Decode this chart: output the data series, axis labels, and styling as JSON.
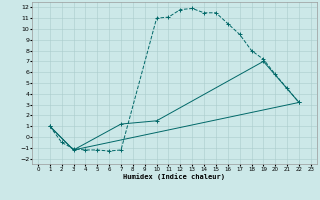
{
  "title": "",
  "xlabel": "Humidex (Indice chaleur)",
  "xlim": [
    -0.5,
    23.5
  ],
  "ylim": [
    -2.5,
    12.5
  ],
  "xticks": [
    0,
    1,
    2,
    3,
    4,
    5,
    6,
    7,
    8,
    9,
    10,
    11,
    12,
    13,
    14,
    15,
    16,
    17,
    18,
    19,
    20,
    21,
    22,
    23
  ],
  "yticks": [
    -2,
    -1,
    0,
    1,
    2,
    3,
    4,
    5,
    6,
    7,
    8,
    9,
    10,
    11,
    12
  ],
  "background_color": "#cce8e8",
  "grid_color": "#aacccc",
  "line_color": "#006868",
  "series": [
    {
      "x": [
        1,
        2,
        3,
        4,
        5,
        6,
        7,
        10,
        11,
        12,
        13,
        14,
        15,
        16,
        17,
        18,
        19,
        20,
        21,
        22
      ],
      "y": [
        1,
        -0.5,
        -1.1,
        -1.2,
        -1.2,
        -1.3,
        -1.2,
        11.0,
        11.1,
        11.8,
        11.9,
        11.5,
        11.5,
        10.5,
        9.5,
        8.0,
        7.2,
        5.8,
        4.5,
        3.2
      ],
      "marker": "+"
    },
    {
      "x": [
        1,
        3,
        7,
        10,
        19,
        22
      ],
      "y": [
        1,
        -1.2,
        1.2,
        1.5,
        7.0,
        3.2
      ]
    },
    {
      "x": [
        1,
        3,
        22
      ],
      "y": [
        1,
        -1.2,
        3.2
      ]
    }
  ]
}
